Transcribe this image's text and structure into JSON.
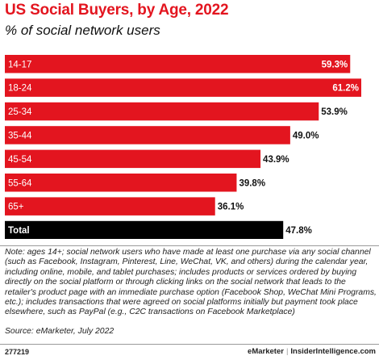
{
  "header": {
    "title": "US Social Buyers, by Age, 2022",
    "subtitle": "% of social network users"
  },
  "chart_data": {
    "type": "bar",
    "orientation": "horizontal",
    "categories": [
      "14-17",
      "18-24",
      "25-34",
      "35-44",
      "45-54",
      "55-64",
      "65+",
      "Total"
    ],
    "values": [
      59.3,
      61.2,
      53.9,
      49.0,
      43.9,
      39.8,
      36.1,
      47.8
    ],
    "value_labels": [
      "59.3%",
      "61.2%",
      "53.9%",
      "49.0%",
      "43.9%",
      "39.8%",
      "36.1%",
      "47.8%"
    ],
    "xlim": [
      0,
      61.2
    ],
    "grid": false,
    "legend": "none",
    "colors": {
      "bar": "#e3151f",
      "total_bar": "#000000",
      "bar_label": "#ffffff",
      "value_label": "#111111"
    }
  },
  "footer": {
    "note": "Note: ages 14+; social network users who have made at least one purchase via any social channel (such as Facebook, Instagram, Pinterest, Line, WeChat, VK, and others) during the calendar year, including online, mobile, and tablet purchases; includes products or services ordered by buying directly on the social platform or through clicking links on the social network that leads to the retailer's product page with an immediate purchase option (Facebook Shop, WeChat Mini Programs, etc.); includes transactions that were agreed on social platforms initially but payment took place elsewhere, such as PayPal (e.g., C2C transactions on Facebook Marketplace)",
    "source": "Source: eMarketer, July 2022",
    "chart_id": "277219",
    "brand_left": "eMarketer",
    "brand_sep": "|",
    "brand_right": "InsiderIntelligence.com"
  }
}
